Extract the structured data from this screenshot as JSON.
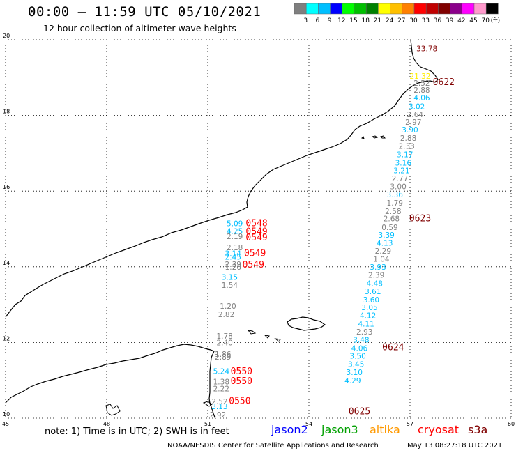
{
  "header": {
    "title": "00:00 – 11:59 UTC 05/10/2021",
    "subtitle": "12 hour collection of altimeter wave heights"
  },
  "legend": {
    "unit": "(ft)",
    "bins": [
      {
        "label": "3",
        "color": "#7f7f7f"
      },
      {
        "label": "6",
        "color": "#00ffff"
      },
      {
        "label": "9",
        "color": "#00bfff"
      },
      {
        "label": "12",
        "color": "#0000ff"
      },
      {
        "label": "15",
        "color": "#00ff00"
      },
      {
        "label": "18",
        "color": "#00c000"
      },
      {
        "label": "21",
        "color": "#008000"
      },
      {
        "label": "24",
        "color": "#ffff00"
      },
      {
        "label": "27",
        "color": "#ffc000"
      },
      {
        "label": "30",
        "color": "#ff8000"
      },
      {
        "label": "33",
        "color": "#ff0000"
      },
      {
        "label": "36",
        "color": "#c00000"
      },
      {
        "label": "39",
        "color": "#800000"
      },
      {
        "label": "42",
        "color": "#8b008b"
      },
      {
        "label": "45",
        "color": "#ff00ff"
      },
      {
        "label": "70",
        "color": "#ff99cc"
      },
      {
        "label": "",
        "color": "#000000"
      }
    ]
  },
  "axes": {
    "lon_ticks": [
      {
        "lon": 45,
        "label": "45"
      },
      {
        "lon": 48,
        "label": "48"
      },
      {
        "lon": 51,
        "label": "51"
      },
      {
        "lon": 54,
        "label": "54"
      },
      {
        "lon": 57,
        "label": "57"
      },
      {
        "lon": 60,
        "label": "60"
      }
    ],
    "lat_ticks": [
      {
        "lat": 20,
        "label": "20"
      },
      {
        "lat": 18,
        "label": "18"
      },
      {
        "lat": 16,
        "label": "16"
      },
      {
        "lat": 14,
        "label": "14"
      },
      {
        "lat": 12,
        "label": "12"
      },
      {
        "lat": 10,
        "label": "10"
      }
    ],
    "lon_range": [
      45,
      60
    ],
    "lat_range": [
      10,
      20
    ],
    "grid": "dotted"
  },
  "tracks": [
    {
      "times": [
        {
          "text": "0622",
          "lon": 58.0,
          "lat": 18.8,
          "color": "#800000"
        },
        {
          "text": "0623",
          "lon": 57.3,
          "lat": 15.2,
          "color": "#800000"
        },
        {
          "text": "0624",
          "lon": 56.5,
          "lat": 11.8,
          "color": "#800000"
        },
        {
          "text": "0625",
          "lon": 55.5,
          "lat": 10.1,
          "color": "#800000"
        }
      ],
      "values": [
        {
          "text": "33.78",
          "lon": 57.5,
          "lat": 19.7,
          "color": "#800000"
        },
        {
          "text": "21.32",
          "lon": 57.3,
          "lat": 18.97,
          "color": "#ffee00"
        },
        {
          "text": "2.52",
          "lon": 57.35,
          "lat": 18.78,
          "color": "#7f7f7f"
        },
        {
          "text": "2.88",
          "lon": 57.35,
          "lat": 18.6,
          "color": "#7f7f7f"
        },
        {
          "text": "4.06",
          "lon": 57.35,
          "lat": 18.4,
          "color": "#00bfff"
        },
        {
          "text": "3.02",
          "lon": 57.2,
          "lat": 18.17,
          "color": "#00bfff"
        },
        {
          "text": "2.64",
          "lon": 57.15,
          "lat": 17.96,
          "color": "#7f7f7f"
        },
        {
          "text": "2.97",
          "lon": 57.1,
          "lat": 17.75,
          "color": "#7f7f7f"
        },
        {
          "text": "3.90",
          "lon": 57.0,
          "lat": 17.55,
          "color": "#00bfff"
        },
        {
          "text": "2.88",
          "lon": 56.95,
          "lat": 17.33,
          "color": "#7f7f7f"
        },
        {
          "text": "2.33",
          "lon": 56.9,
          "lat": 17.12,
          "color": "#7f7f7f"
        },
        {
          "text": "3.17",
          "lon": 56.85,
          "lat": 16.9,
          "color": "#00bfff"
        },
        {
          "text": "3.16",
          "lon": 56.8,
          "lat": 16.68,
          "color": "#00bfff"
        },
        {
          "text": "3.21",
          "lon": 56.75,
          "lat": 16.47,
          "color": "#00bfff"
        },
        {
          "text": "2.77",
          "lon": 56.7,
          "lat": 16.26,
          "color": "#7f7f7f"
        },
        {
          "text": "3.00",
          "lon": 56.65,
          "lat": 16.05,
          "color": "#7f7f7f"
        },
        {
          "text": "3.36",
          "lon": 56.55,
          "lat": 15.84,
          "color": "#00bfff"
        },
        {
          "text": "1.79",
          "lon": 56.55,
          "lat": 15.62,
          "color": "#7f7f7f"
        },
        {
          "text": "2.58",
          "lon": 56.5,
          "lat": 15.4,
          "color": "#7f7f7f"
        },
        {
          "text": "2.68",
          "lon": 56.45,
          "lat": 15.2,
          "color": "#7f7f7f"
        },
        {
          "text": "0.59",
          "lon": 56.4,
          "lat": 14.97,
          "color": "#7f7f7f"
        },
        {
          "text": "3.39",
          "lon": 56.3,
          "lat": 14.77,
          "color": "#00bfff"
        },
        {
          "text": "4.13",
          "lon": 56.25,
          "lat": 14.56,
          "color": "#00bfff"
        },
        {
          "text": "2.29",
          "lon": 56.2,
          "lat": 14.35,
          "color": "#7f7f7f"
        },
        {
          "text": "1.04",
          "lon": 56.15,
          "lat": 14.13,
          "color": "#7f7f7f"
        },
        {
          "text": "3.93",
          "lon": 56.05,
          "lat": 13.92,
          "color": "#00bfff"
        },
        {
          "text": "2.39",
          "lon": 56.0,
          "lat": 13.71,
          "color": "#7f7f7f"
        },
        {
          "text": "4.48",
          "lon": 55.95,
          "lat": 13.49,
          "color": "#00bfff"
        },
        {
          "text": "3.61",
          "lon": 55.9,
          "lat": 13.28,
          "color": "#00bfff"
        },
        {
          "text": "3.60",
          "lon": 55.85,
          "lat": 13.06,
          "color": "#00bfff"
        },
        {
          "text": "3.05",
          "lon": 55.8,
          "lat": 12.85,
          "color": "#00bfff"
        },
        {
          "text": "4.12",
          "lon": 55.75,
          "lat": 12.64,
          "color": "#00bfff"
        },
        {
          "text": "4.11",
          "lon": 55.7,
          "lat": 12.42,
          "color": "#00bfff"
        },
        {
          "text": "2.93",
          "lon": 55.65,
          "lat": 12.21,
          "color": "#7f7f7f"
        },
        {
          "text": "3.48",
          "lon": 55.55,
          "lat": 12.0,
          "color": "#00bfff"
        },
        {
          "text": "4.06",
          "lon": 55.5,
          "lat": 11.78,
          "color": "#00bfff"
        },
        {
          "text": "3.50",
          "lon": 55.45,
          "lat": 11.57,
          "color": "#00bfff"
        },
        {
          "text": "3.45",
          "lon": 55.4,
          "lat": 11.35,
          "color": "#00bfff"
        },
        {
          "text": "3.10",
          "lon": 55.35,
          "lat": 11.14,
          "color": "#00bfff"
        },
        {
          "text": "4.29",
          "lon": 55.3,
          "lat": 10.92,
          "color": "#00bfff"
        }
      ]
    },
    {
      "times": [
        {
          "text": "0548",
          "lon": 52.45,
          "lat": 15.07,
          "color": "#ff0000"
        },
        {
          "text": "0549",
          "lon": 52.45,
          "lat": 14.85,
          "color": "#ff0000"
        },
        {
          "text": "0549",
          "lon": 52.45,
          "lat": 14.7,
          "color": "#ff0000"
        },
        {
          "text": "0549",
          "lon": 52.4,
          "lat": 14.28,
          "color": "#ff0000"
        },
        {
          "text": "0549",
          "lon": 52.35,
          "lat": 13.98,
          "color": "#ff0000"
        },
        {
          "text": "0550",
          "lon": 52.0,
          "lat": 11.16,
          "color": "#ff0000"
        },
        {
          "text": "0550",
          "lon": 52.0,
          "lat": 10.9,
          "color": "#ff0000"
        },
        {
          "text": "0550",
          "lon": 51.95,
          "lat": 10.38,
          "color": "#ff0000"
        }
      ],
      "values": [
        {
          "text": "5.09",
          "lon": 51.8,
          "lat": 15.07,
          "color": "#00bfff"
        },
        {
          "text": "4.25",
          "lon": 51.8,
          "lat": 14.87,
          "color": "#00bfff"
        },
        {
          "text": "2.19",
          "lon": 51.8,
          "lat": 14.73,
          "color": "#7f7f7f"
        },
        {
          "text": "2.18",
          "lon": 51.8,
          "lat": 14.44,
          "color": "#7f7f7f"
        },
        {
          "text": "3.14",
          "lon": 51.75,
          "lat": 14.28,
          "color": "#00bfff"
        },
        {
          "text": "2.45",
          "lon": 51.75,
          "lat": 14.19,
          "color": "#00bfff"
        },
        {
          "text": "2.39",
          "lon": 51.75,
          "lat": 14.0,
          "color": "#7f7f7f"
        },
        {
          "text": "1.26",
          "lon": 51.75,
          "lat": 13.92,
          "color": "#7f7f7f"
        },
        {
          "text": "3.15",
          "lon": 51.65,
          "lat": 13.66,
          "color": "#00bfff"
        },
        {
          "text": "1.54",
          "lon": 51.65,
          "lat": 13.44,
          "color": "#7f7f7f"
        },
        {
          "text": "1.20",
          "lon": 51.6,
          "lat": 12.89,
          "color": "#7f7f7f"
        },
        {
          "text": "2.82",
          "lon": 51.55,
          "lat": 12.67,
          "color": "#7f7f7f"
        },
        {
          "text": "1.78",
          "lon": 51.5,
          "lat": 12.1,
          "color": "#7f7f7f"
        },
        {
          "text": "2.40",
          "lon": 51.5,
          "lat": 11.92,
          "color": "#7f7f7f"
        },
        {
          "text": "1.86",
          "lon": 51.45,
          "lat": 11.62,
          "color": "#7f7f7f"
        },
        {
          "text": "2.89",
          "lon": 51.45,
          "lat": 11.55,
          "color": "#7f7f7f"
        },
        {
          "text": "5.24",
          "lon": 51.4,
          "lat": 11.17,
          "color": "#00bfff"
        },
        {
          "text": "1.38",
          "lon": 51.4,
          "lat": 10.89,
          "color": "#7f7f7f"
        },
        {
          "text": "2.22",
          "lon": 51.4,
          "lat": 10.71,
          "color": "#7f7f7f"
        },
        {
          "text": "2.52",
          "lon": 51.35,
          "lat": 10.37,
          "color": "#7f7f7f"
        },
        {
          "text": "3.13",
          "lon": 51.35,
          "lat": 10.24,
          "color": "#00bfff"
        },
        {
          "text": "2.92",
          "lon": 51.3,
          "lat": 10.02,
          "color": "#7f7f7f"
        }
      ]
    }
  ],
  "footer": {
    "note": "note: 1) Time is in UTC; 2) SWH is in feet",
    "missions": [
      {
        "text": "jason2",
        "color": "#0000ff"
      },
      {
        "text": "jason3",
        "color": "#00a000"
      },
      {
        "text": "altika",
        "color": "#ff9900"
      },
      {
        "text": "cryosat",
        "color": "#ff0000"
      },
      {
        "text": "s3a",
        "color": "#800000"
      }
    ],
    "credit": "NOAA/NESDIS Center for Satellite Applications and Research",
    "timestamp": "May 13 08:27:18 UTC 2021"
  }
}
